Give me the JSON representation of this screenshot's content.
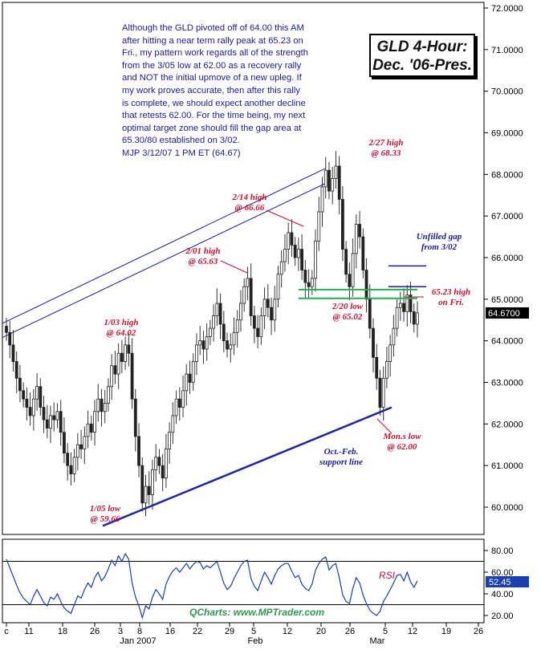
{
  "chart_data": {
    "type": "candlestick",
    "title": "GLD 4-Hour:\nDec. '06-Pres.",
    "note": "Although the GLD pivoted off of 64.00 this AM\nafter hitting a near term rally peak at 65.23 on\nFri., my pattern work regards all of the strength\nfrom the 3/05 low at 62.00 as a recovery rally\nand NOT the initial upmove of a new upleg. If\nmy work proves accurate, then after this rally\nis complete, we should expect another decline\nthat retests 62.00. For the time being, my next\noptimal target zone should fill the gap area at\n65.30/80 established on 3/02.\nMJP 3/12/07 1 PM ET  (64.67)",
    "y_ticks": [
      "72.0000",
      "71.0000",
      "70.0000",
      "69.0000",
      "68.0000",
      "67.0000",
      "66.0000",
      "65.0000",
      "64.0000",
      "63.0000",
      "62.0000",
      "61.0000",
      "60.0000"
    ],
    "ylim": [
      59.3,
      72.2
    ],
    "last_price": "64.6700",
    "x_ticks": [
      "c",
      "11",
      "18",
      "26",
      "3",
      "8",
      "16",
      "22",
      "29",
      "5",
      "12",
      "20",
      "26",
      "5",
      "12",
      "19",
      "26"
    ],
    "x_month_labels": [
      "Jan 2007",
      "Feb",
      "Mar"
    ],
    "annotations": [
      {
        "text": "1/03 high\n@ 64.02",
        "color": "red"
      },
      {
        "text": "1/05 low\n@ 59.66",
        "color": "red"
      },
      {
        "text": "2/01 high\n@ 65.63",
        "color": "red"
      },
      {
        "text": "2/14 high\n@ 66.66",
        "color": "red"
      },
      {
        "text": "2/27 high\n@ 68.33",
        "color": "red"
      },
      {
        "text": "2/20 low\n@ 65.02",
        "color": "red"
      },
      {
        "text": "65.23 high\non Fri.",
        "color": "red"
      },
      {
        "text": "Mon.s low\n@ 62.00",
        "color": "red"
      },
      {
        "text": "Unfilled gap\nfrom 3/02",
        "color": "blue"
      },
      {
        "text": "Oct.-Feb.\nsupport line",
        "color": "blue"
      }
    ],
    "support_line": [
      59.66,
      62.4
    ],
    "horizontal_levels": [
      65.02,
      65.23
    ],
    "gap_levels": [
      65.3,
      65.8
    ],
    "closes": [
      64.2,
      63.9,
      63.5,
      63.1,
      62.8,
      62.6,
      62.4,
      62.2,
      62.6,
      62.9,
      62.4,
      62.1,
      61.9,
      62.2,
      62.1,
      62.3,
      61.8,
      61.3,
      61.0,
      60.8,
      61.2,
      61.5,
      61.4,
      61.7,
      62.0,
      61.8,
      62.3,
      62.6,
      62.3,
      62.5,
      62.9,
      63.4,
      63.2,
      63.7,
      63.5,
      63.9,
      63.7,
      62.6,
      61.7,
      61.0,
      60.1,
      60.5,
      60.3,
      60.9,
      61.2,
      61.0,
      60.7,
      61.4,
      61.8,
      62.2,
      62.6,
      62.4,
      62.8,
      63.2,
      63.0,
      63.5,
      63.9,
      64.0,
      63.8,
      64.1,
      64.3,
      64.6,
      64.9,
      64.4,
      64.0,
      63.8,
      63.9,
      64.2,
      64.5,
      64.9,
      65.3,
      65.5,
      64.6,
      64.3,
      64.1,
      64.6,
      65.0,
      64.8,
      64.5,
      65.0,
      65.6,
      65.9,
      66.2,
      66.6,
      66.3,
      66.0,
      66.2,
      65.7,
      65.4,
      65.3,
      65.5,
      66.4,
      67.1,
      67.7,
      68.1,
      67.6,
      67.9,
      68.2,
      67.4,
      66.2,
      65.6,
      65.3,
      66.1,
      66.8,
      66.5,
      65.7,
      65.0,
      64.3,
      63.6,
      63.1,
      62.4,
      63.1,
      63.5,
      63.9,
      64.3,
      64.8,
      64.9,
      64.7,
      65.1,
      64.7,
      64.4,
      64.67
    ],
    "rsi": {
      "label": "RSI",
      "current": "52.45",
      "y_ticks": [
        "80.00",
        "60.00",
        "40.00",
        "20.00"
      ],
      "ylim": [
        14,
        87
      ],
      "values": [
        72,
        64,
        56,
        48,
        41,
        36,
        33,
        30,
        38,
        44,
        38,
        32,
        29,
        37,
        35,
        40,
        33,
        27,
        24,
        22,
        30,
        38,
        36,
        44,
        50,
        46,
        55,
        60,
        52,
        56,
        63,
        71,
        66,
        75,
        70,
        77,
        72,
        50,
        37,
        29,
        18,
        29,
        26,
        37,
        44,
        40,
        35,
        49,
        56,
        61,
        64,
        60,
        64,
        68,
        63,
        67,
        70,
        69,
        63,
        66,
        64,
        67,
        70,
        60,
        50,
        44,
        47,
        54,
        60,
        66,
        70,
        71,
        54,
        47,
        43,
        52,
        60,
        55,
        49,
        57,
        63,
        66,
        68,
        68,
        61,
        55,
        57,
        49,
        45,
        43,
        49,
        62,
        68,
        72,
        74,
        62,
        66,
        68,
        55,
        39,
        33,
        31,
        45,
        55,
        50,
        39,
        31,
        25,
        22,
        20,
        24,
        33,
        38,
        44,
        50,
        57,
        58,
        52,
        60,
        51,
        46,
        52
      ],
      "ref_levels": [
        70,
        30
      ]
    },
    "colors": {
      "up": "#3a3a3a",
      "down": "#b01010",
      "trend": "#1a1a9c",
      "support": "#2222aa",
      "level": "#22b14c",
      "watermark": "#2e9a4e"
    }
  },
  "watermark": "QCharts: www.MPTrader.com"
}
